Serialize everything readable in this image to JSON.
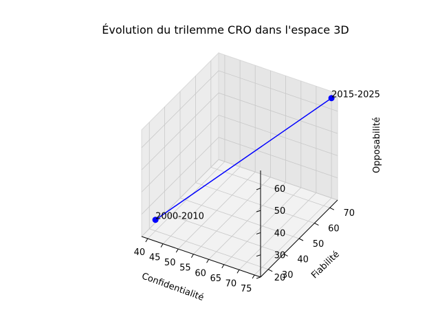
{
  "chart_data": {
    "type": "line3d",
    "title": "Évolution du trilemme CRO dans l'espace 3D",
    "xlabel": "Confidentialité",
    "ylabel": "Fiabilité",
    "zlabel": "Opposabilité",
    "xlim": [
      38,
      77
    ],
    "ylim": [
      25,
      75
    ],
    "zlim": [
      20,
      68
    ],
    "xticks": [
      40,
      45,
      50,
      55,
      60,
      65,
      70,
      75
    ],
    "yticks": [
      30,
      40,
      50,
      60,
      70
    ],
    "zticks": [
      20,
      30,
      40,
      50,
      60
    ],
    "grid": true,
    "series": [
      {
        "color": "#0000ff",
        "points": [
          {
            "label": "2000-2010",
            "x": 40,
            "y": 30,
            "z": 25
          },
          {
            "label": "2015-2025",
            "x": 75,
            "y": 75,
            "z": 65
          }
        ]
      }
    ]
  }
}
